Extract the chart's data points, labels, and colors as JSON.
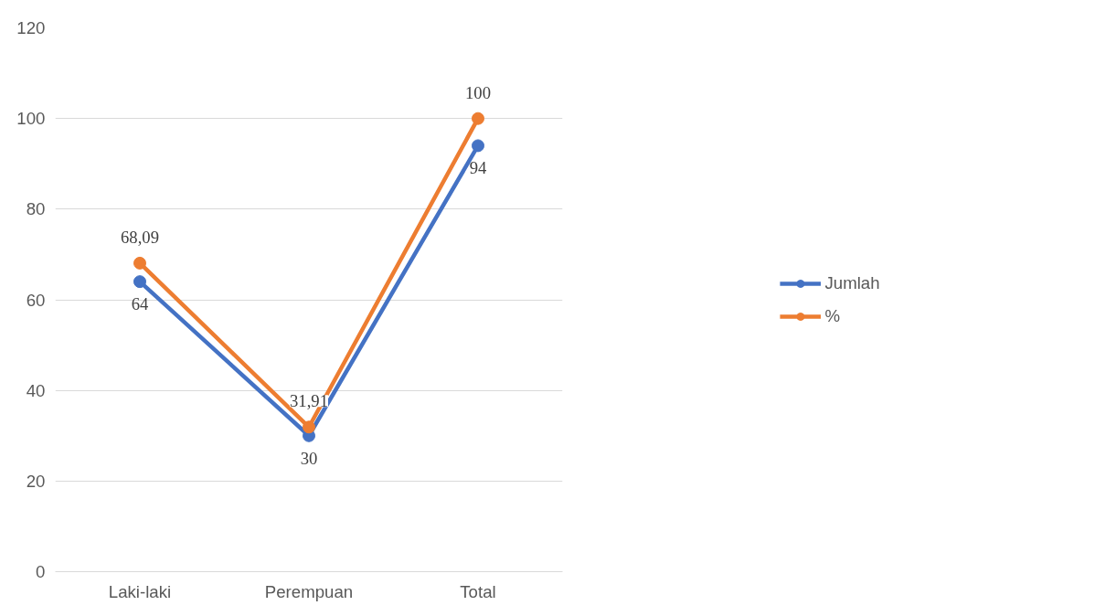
{
  "chart_data": {
    "type": "line",
    "categories": [
      "Laki-laki",
      "Perempuan",
      "Total"
    ],
    "series": [
      {
        "name": "Jumlah",
        "color": "#4472c4",
        "values": [
          64,
          30,
          94
        ],
        "value_labels": [
          "64",
          "30",
          "94"
        ]
      },
      {
        "name": "%",
        "color": "#ed7d31",
        "values": [
          68.09,
          31.91,
          100
        ],
        "value_labels": [
          "68,09",
          "31,91",
          "100"
        ]
      }
    ],
    "ylim": [
      0,
      120
    ],
    "yticks": [
      0,
      20,
      40,
      60,
      80,
      100,
      120
    ],
    "grid": "y",
    "legend": "right",
    "marker": "circle",
    "line_style": "solid"
  }
}
